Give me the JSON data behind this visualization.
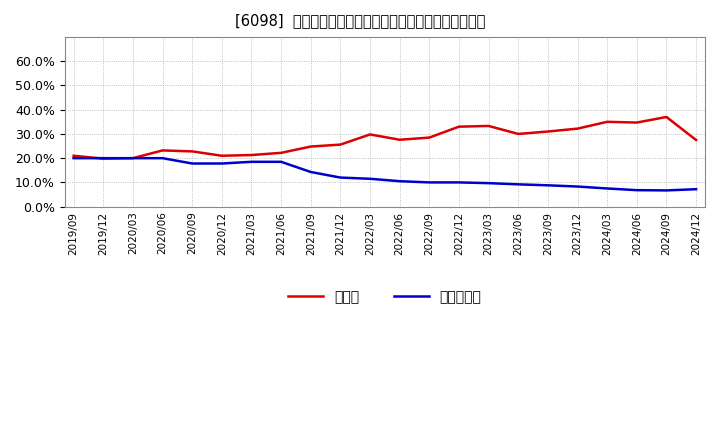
{
  "title": "[6098]  現預金、有利子負債の総資産に対する比率の推移",
  "x_labels": [
    "2019/09",
    "2019/12",
    "2020/03",
    "2020/06",
    "2020/09",
    "2020/12",
    "2021/03",
    "2021/06",
    "2021/09",
    "2021/12",
    "2022/03",
    "2022/06",
    "2022/09",
    "2022/12",
    "2023/03",
    "2023/06",
    "2023/09",
    "2023/12",
    "2024/03",
    "2024/06",
    "2024/09",
    "2024/12"
  ],
  "cash_values": [
    0.21,
    0.198,
    0.2,
    0.232,
    0.228,
    0.21,
    0.213,
    0.222,
    0.248,
    0.256,
    0.298,
    0.276,
    0.285,
    0.33,
    0.333,
    0.3,
    0.31,
    0.322,
    0.35,
    0.347,
    0.37,
    0.275
  ],
  "debt_values": [
    0.2,
    0.2,
    0.2,
    0.2,
    0.178,
    0.178,
    0.185,
    0.185,
    0.143,
    0.12,
    0.115,
    0.105,
    0.1,
    0.1,
    0.097,
    0.092,
    0.088,
    0.083,
    0.075,
    0.068,
    0.067,
    0.072
  ],
  "ylim": [
    0.0,
    0.7
  ],
  "yticks": [
    0.0,
    0.1,
    0.2,
    0.3,
    0.4,
    0.5,
    0.6
  ],
  "cash_color": "#dd0000",
  "debt_color": "#0000cc",
  "legend_cash": "現預金",
  "legend_debt": "有利子負債",
  "grid_color": "#999999",
  "background_color": "#ffffff",
  "plot_bg_color": "#ffffff"
}
